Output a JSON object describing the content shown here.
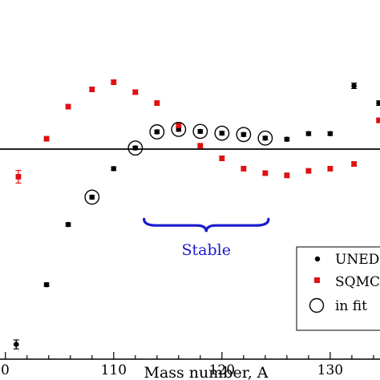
{
  "chart_data": {
    "type": "scatter",
    "xlabel": "Mass number, A",
    "x_ticks": [
      110,
      120,
      130
    ],
    "x_tick_labels": [
      "110",
      "120",
      "130"
    ],
    "x_edge_tick_label": "0",
    "xlim": [
      99.5,
      134.6
    ],
    "ylim": [
      -1.0,
      1.0
    ],
    "reference_line_y": 0,
    "grid": false,
    "legend_placement": "bottom-right",
    "series": [
      {
        "name": "UNEDF",
        "marker": "circle",
        "color": "#000000",
        "x": [
          101,
          103.8,
          105.8,
          108,
          110,
          112,
          114,
          116,
          118,
          120,
          122,
          124,
          126,
          128,
          130,
          132.2,
          134.5
        ],
        "y": [
          -0.87,
          -0.604,
          -0.336,
          -0.214,
          -0.087,
          0.005,
          0.077,
          0.088,
          0.079,
          0.071,
          0.065,
          0.049,
          0.044,
          0.069,
          0.069,
          0.282,
          0.205
        ],
        "yerr": [
          0.02,
          0.008,
          0.008,
          0.008,
          0.008,
          0.008,
          0.008,
          0.008,
          0.008,
          0.008,
          0.008,
          0.008,
          0.008,
          0.008,
          0.008,
          0.012,
          0.01
        ]
      },
      {
        "name": "SQMC",
        "marker": "square",
        "color": "#dd1111",
        "x": [
          101.2,
          103.8,
          105.8,
          108,
          110,
          112,
          114,
          116,
          118,
          120,
          122,
          124,
          126,
          128,
          130,
          132.2,
          134.5
        ],
        "y": [
          -0.123,
          0.046,
          0.189,
          0.266,
          0.298,
          0.254,
          0.205,
          0.106,
          0.015,
          -0.041,
          -0.087,
          -0.107,
          -0.117,
          -0.097,
          -0.087,
          -0.066,
          0.128
        ],
        "yerr": [
          0.028,
          0.01,
          0.01,
          0.01,
          0.01,
          0.01,
          0.01,
          0.01,
          0.01,
          0.01,
          0.01,
          0.01,
          0.01,
          0.01,
          0.01,
          0.01,
          0.01
        ]
      }
    ],
    "in_fit": {
      "name": "in fit",
      "marker": "open-circle",
      "x": [
        108,
        112,
        114,
        116,
        118,
        120,
        122,
        124
      ],
      "y": [
        -0.214,
        0.005,
        0.077,
        0.088,
        0.079,
        0.071,
        0.065,
        0.049
      ]
    },
    "annotations": [
      {
        "text": "Stable",
        "color": "#1a1acc",
        "brace_x": [
          112.8,
          124.3
        ],
        "brace_y": -0.34
      }
    ],
    "legend_entries": [
      "UNEDF",
      "SQMC",
      "in fit"
    ]
  }
}
